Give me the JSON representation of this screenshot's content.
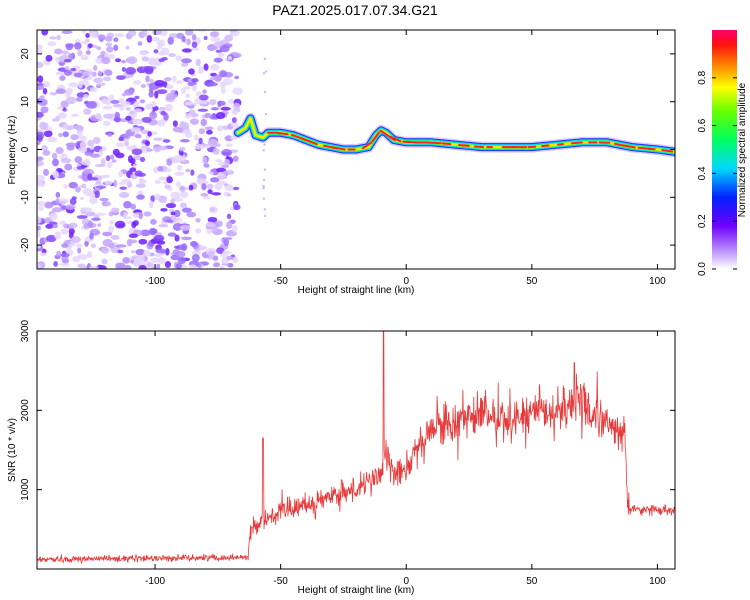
{
  "figure_title": "PAZ1.2025.017.07.34.G21",
  "chart_data": [
    {
      "type": "heatmap",
      "xlabel": "Height of straight line (km)",
      "ylabel": "Frequency (Hz)",
      "xlim": [
        -147,
        107
      ],
      "ylim": [
        -25,
        25
      ],
      "xticks": [
        -100,
        -50,
        0,
        50,
        100
      ],
      "yticks": [
        -20,
        -10,
        0,
        10,
        20
      ],
      "colorbar": {
        "label": "Normalized spectral amplitude",
        "range": [
          0,
          1
        ],
        "ticks": [
          "0.0",
          "0.2",
          "0.4",
          "0.6",
          "0.8"
        ],
        "colormap": "rainbow (violet-blue-cyan-green-yellow-red-magenta)"
      },
      "noise_region_x": [
        -147,
        -67
      ],
      "ridge": {
        "x": [
          -67,
          -64,
          -62,
          -60,
          -57,
          -55,
          -50,
          -45,
          -40,
          -35,
          -30,
          -25,
          -20,
          -15,
          -12,
          -10,
          -8,
          -5,
          0,
          5,
          10,
          20,
          30,
          40,
          50,
          60,
          70,
          80,
          90,
          100,
          107
        ],
        "frequency_hz": [
          3.5,
          4.5,
          6.5,
          3.0,
          2.5,
          3.5,
          3.5,
          3.0,
          2.0,
          1.0,
          0.5,
          0.0,
          0.0,
          0.5,
          3.0,
          4.0,
          3.5,
          2.0,
          1.5,
          1.5,
          1.5,
          1.0,
          0.5,
          0.5,
          0.5,
          1.0,
          1.5,
          1.5,
          0.5,
          0.0,
          -0.5
        ]
      }
    },
    {
      "type": "line",
      "xlabel": "Height of straight line (km)",
      "ylabel": "SNR (10 * v/v)",
      "xlim": [
        -147,
        107
      ],
      "ylim": [
        0,
        3000
      ],
      "xticks": [
        -100,
        -50,
        0,
        50,
        100
      ],
      "yticks": [
        1000,
        2000,
        3000
      ],
      "line_color": "#e83a3a",
      "series_envelope": {
        "x": [
          -147,
          -120,
          -90,
          -63,
          -62,
          -55,
          -45,
          -35,
          -25,
          -15,
          -10,
          -8,
          -5,
          0,
          5,
          10,
          20,
          30,
          40,
          50,
          60,
          67,
          75,
          85,
          87,
          88,
          89,
          95,
          107
        ],
        "snr": [
          120,
          130,
          140,
          150,
          500,
          650,
          750,
          850,
          950,
          1050,
          1200,
          1500,
          1250,
          1300,
          1500,
          1750,
          1900,
          1950,
          1900,
          1950,
          2000,
          2100,
          1950,
          1700,
          1700,
          900,
          750,
          750,
          750
        ]
      },
      "spikes": [
        {
          "x": -9,
          "snr": 3000
        },
        {
          "x": 67,
          "snr": 2600
        },
        {
          "x": -57,
          "snr": 1650
        }
      ]
    }
  ]
}
